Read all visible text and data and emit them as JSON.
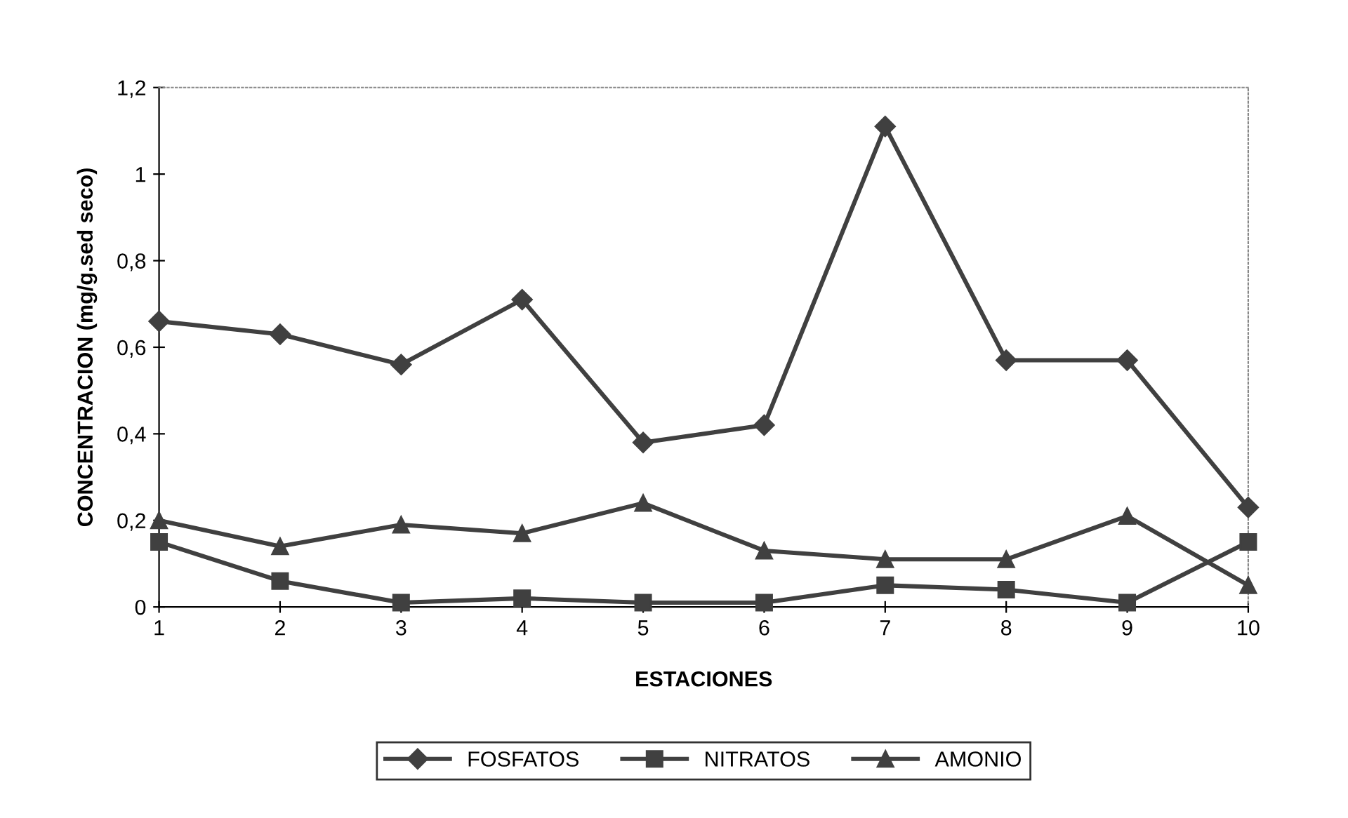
{
  "chart_data": {
    "type": "line",
    "xlabel": "ESTACIONES",
    "ylabel": "CONCENTRACION (mg/g.sed seco)",
    "categories": [
      "1",
      "2",
      "3",
      "4",
      "5",
      "6",
      "7",
      "8",
      "9",
      "10"
    ],
    "series": [
      {
        "name": "FOSFATOS",
        "color": "#404040",
        "marker": "diamond",
        "values": [
          0.66,
          0.63,
          0.56,
          0.71,
          0.38,
          0.42,
          1.11,
          0.57,
          0.57,
          0.23
        ]
      },
      {
        "name": "NITRATOS",
        "color": "#404040",
        "marker": "square",
        "values": [
          0.15,
          0.06,
          0.01,
          0.02,
          0.01,
          0.01,
          0.05,
          0.04,
          0.01,
          0.15
        ]
      },
      {
        "name": "AMONIO",
        "color": "#404040",
        "marker": "triangle",
        "values": [
          0.2,
          0.14,
          0.19,
          0.17,
          0.24,
          0.13,
          0.11,
          0.11,
          0.21,
          0.05
        ]
      }
    ],
    "ylim": [
      0,
      1.2
    ],
    "yticks": [
      {
        "value": 0,
        "label": "0"
      },
      {
        "value": 0.2,
        "label": "0,2"
      },
      {
        "value": 0.4,
        "label": "0,4"
      },
      {
        "value": 0.6,
        "label": "0,6"
      },
      {
        "value": 0.8,
        "label": "0,8"
      },
      {
        "value": 1,
        "label": "1"
      },
      {
        "value": 1.2,
        "label": "1,2"
      }
    ],
    "grid": false,
    "legend": "bottom",
    "line_style": "solid"
  }
}
